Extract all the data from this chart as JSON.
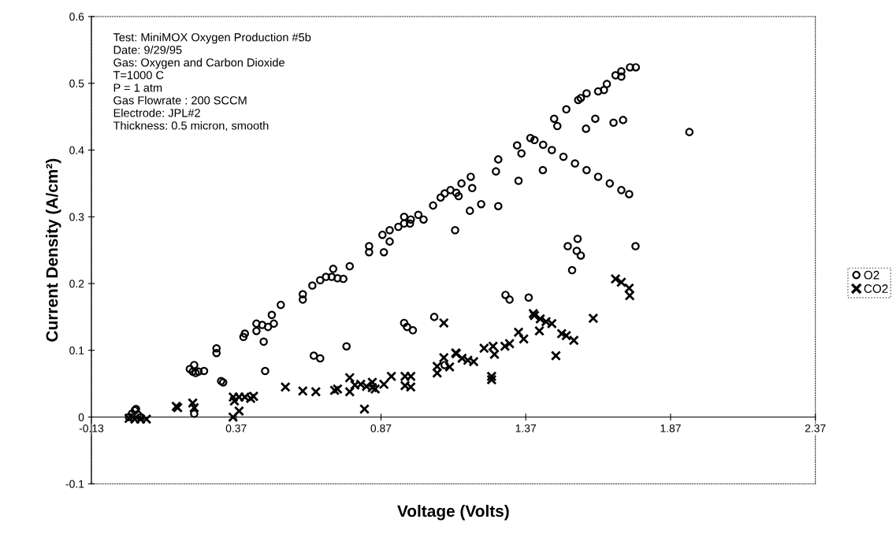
{
  "chart_data": {
    "type": "scatter",
    "xlabel": "Voltage (Volts)",
    "ylabel": "Current Density (A/cm²)",
    "annotations": [
      "Test: MiniMOX Oxygen Production #5b",
      "Date: 9/29/95",
      "Gas: Oxygen and Carbon Dioxide",
      "T=1000 C",
      "P = 1 atm",
      "Gas Flowrate : 200 SCCM",
      "Electrode: JPL#2",
      "Thickness: 0.5 micron, smooth"
    ],
    "xlim": [
      -0.13,
      2.37
    ],
    "xticks": [
      -0.13,
      0.37,
      0.87,
      1.37,
      1.87,
      2.37
    ],
    "ylim": [
      -0.1,
      0.6
    ],
    "yticks": [
      -0.1,
      0,
      0.1,
      0.2,
      0.3,
      0.4,
      0.5,
      0.6
    ],
    "grid": false,
    "legend": "right",
    "series": [
      {
        "name": "O2",
        "color": "#000000",
        "marker": "circle",
        "x": [
          0.0,
          0.01,
          0.02,
          0.024,
          0.03,
          0.04,
          0.21,
          0.22,
          0.23,
          0.24,
          0.259,
          0.225,
          0.225,
          0.318,
          0.325,
          0.302,
          0.302,
          0.395,
          0.4,
          0.44,
          0.46,
          0.48,
          0.5,
          0.44,
          0.465,
          0.47,
          0.493,
          0.524,
          0.6,
          0.6,
          0.633,
          0.66,
          0.68,
          0.7,
          0.72,
          0.74,
          0.705,
          0.638,
          0.66,
          0.751,
          0.762,
          0.829,
          0.829,
          0.88,
          0.875,
          0.9,
          0.93,
          0.95,
          0.97,
          0.9,
          0.95,
          0.95,
          0.96,
          0.98,
          0.973,
          0.999,
          1.017,
          1.05,
          1.076,
          1.09,
          1.11,
          1.13,
          1.138,
          1.126,
          1.148,
          1.18,
          1.185,
          1.177,
          1.216,
          1.275,
          1.267,
          1.275,
          1.345,
          1.34,
          1.355,
          1.386,
          1.4,
          1.43,
          1.46,
          1.5,
          1.54,
          1.58,
          1.62,
          1.66,
          1.7,
          1.727,
          1.429,
          1.468,
          1.479,
          1.51,
          1.551,
          1.56,
          1.58,
          1.62,
          1.64,
          1.65,
          1.578,
          1.61,
          1.673,
          1.706,
          1.68,
          1.7,
          1.73,
          1.75,
          1.7,
          1.935,
          1.749,
          1.515,
          1.549,
          1.546,
          1.56,
          1.53,
          1.3,
          1.314,
          1.38,
          1.054,
          1.09
        ],
        "values": [
          0.0,
          0.005,
          0.01,
          0.012,
          0.004,
          0.0,
          0.072,
          0.068,
          0.066,
          0.068,
          0.069,
          0.078,
          0.005,
          0.054,
          0.052,
          0.103,
          0.096,
          0.12,
          0.125,
          0.14,
          0.138,
          0.135,
          0.14,
          0.129,
          0.113,
          0.069,
          0.153,
          0.168,
          0.176,
          0.184,
          0.197,
          0.205,
          0.21,
          0.21,
          0.208,
          0.207,
          0.222,
          0.092,
          0.088,
          0.106,
          0.226,
          0.256,
          0.247,
          0.247,
          0.273,
          0.28,
          0.285,
          0.29,
          0.29,
          0.263,
          0.3,
          0.141,
          0.135,
          0.13,
          0.296,
          0.303,
          0.296,
          0.317,
          0.329,
          0.335,
          0.34,
          0.336,
          0.331,
          0.28,
          0.35,
          0.36,
          0.343,
          0.309,
          0.319,
          0.316,
          0.368,
          0.386,
          0.354,
          0.407,
          0.395,
          0.418,
          0.415,
          0.408,
          0.4,
          0.39,
          0.38,
          0.37,
          0.36,
          0.35,
          0.34,
          0.334,
          0.37,
          0.447,
          0.436,
          0.461,
          0.475,
          0.478,
          0.485,
          0.488,
          0.49,
          0.499,
          0.432,
          0.447,
          0.441,
          0.445,
          0.512,
          0.518,
          0.524,
          0.524,
          0.51,
          0.427,
          0.256,
          0.256,
          0.267,
          0.249,
          0.242,
          0.22,
          0.183,
          0.176,
          0.179,
          0.15,
          0.078
        ]
      },
      {
        "name": "CO2",
        "color": "#000000",
        "marker": "cross",
        "x": [
          0.0,
          0.02,
          0.04,
          0.06,
          0.163,
          0.168,
          0.22,
          0.225,
          0.359,
          0.38,
          0.36,
          0.38,
          0.4,
          0.42,
          0.43,
          0.364,
          0.54,
          0.6,
          0.645,
          0.71,
          0.72,
          0.762,
          0.762,
          0.78,
          0.8,
          0.82,
          0.84,
          0.85,
          0.84,
          0.813,
          0.88,
          0.906,
          0.953,
          0.953,
          0.973,
          0.973,
          1.064,
          1.064,
          1.087,
          1.087,
          1.107,
          1.128,
          1.13,
          1.15,
          1.17,
          1.19,
          1.226,
          1.257,
          1.262,
          1.252,
          1.252,
          1.298,
          1.314,
          1.345,
          1.363,
          1.396,
          1.4,
          1.42,
          1.44,
          1.46,
          1.417,
          1.474,
          1.494,
          1.51,
          1.536,
          1.603,
          1.68,
          1.7,
          1.727,
          1.729
        ],
        "values": [
          -0.002,
          -0.003,
          -0.003,
          -0.003,
          0.016,
          0.014,
          0.021,
          0.014,
          0.0,
          0.009,
          0.03,
          0.03,
          0.03,
          0.028,
          0.031,
          0.024,
          0.045,
          0.039,
          0.038,
          0.04,
          0.042,
          0.059,
          0.038,
          0.048,
          0.049,
          0.046,
          0.044,
          0.042,
          0.052,
          0.012,
          0.049,
          0.061,
          0.061,
          0.047,
          0.061,
          0.045,
          0.066,
          0.076,
          0.089,
          0.141,
          0.075,
          0.096,
          0.095,
          0.088,
          0.085,
          0.083,
          0.103,
          0.106,
          0.094,
          0.056,
          0.061,
          0.106,
          0.11,
          0.127,
          0.117,
          0.155,
          0.152,
          0.147,
          0.143,
          0.14,
          0.129,
          0.092,
          0.125,
          0.122,
          0.115,
          0.148,
          0.207,
          0.202,
          0.193,
          0.182
        ]
      }
    ]
  }
}
